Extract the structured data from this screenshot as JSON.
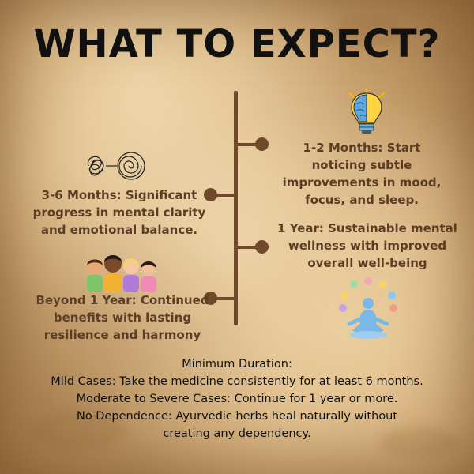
{
  "title": "WHAT TO EXPECT?",
  "timeline": [
    {
      "label": "1-2 Months: Start noticing subtle improvements in mood, focus, and sleep.",
      "icon": "lightbulb-brain-icon"
    },
    {
      "label": "3-6 Months: Significant progress in mental clarity and emotional balance.",
      "icon": "tangled-to-spiral-icon"
    },
    {
      "label": "1 Year: Sustainable mental wellness with improved overall well-being",
      "icon": "meditation-wellness-icon"
    },
    {
      "label": "Beyond 1 Year: Continued benefits with lasting resilience and harmony",
      "icon": "group-of-people-icon"
    }
  ],
  "duration": {
    "heading": "Minimum Duration:",
    "lines": [
      "Mild Cases: Take the medicine consistently for at least 6 months.",
      "Moderate to Severe Cases: Continue for 1 year or more.",
      "No Dependence: Ayurvedic herbs heal naturally without creating any dependency."
    ]
  },
  "colors": {
    "timeline": "#6e4a2b",
    "timeline_text": "#5a3d24",
    "title": "#111111"
  }
}
